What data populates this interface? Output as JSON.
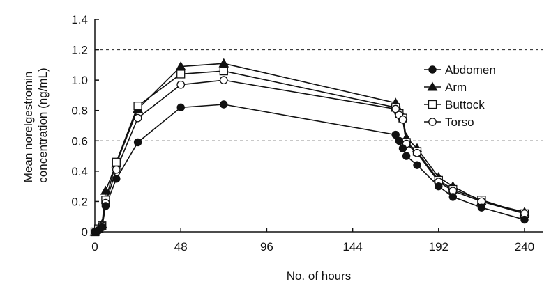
{
  "chart_data": {
    "type": "line",
    "title": "",
    "xlabel": "No. of hours",
    "ylabel_lines": [
      "Mean norelgestromin",
      "concentration (ng/mL)"
    ],
    "xlim": [
      0,
      252
    ],
    "ylim": [
      0,
      1.4
    ],
    "xticks": [
      0,
      48,
      96,
      144,
      192,
      240
    ],
    "yticks": [
      0,
      0.2,
      0.4,
      0.6,
      0.8,
      1.0,
      1.2,
      1.4
    ],
    "ytick_labels": [
      "0",
      "0.2",
      "0.4",
      "0.6",
      "0.8",
      "1.0",
      "1.2",
      "1.4"
    ],
    "reference_lines": [
      0.6,
      1.2
    ],
    "legend_position": "right",
    "series": [
      {
        "name": "Abdomen",
        "marker": "filled-circle",
        "x": [
          0,
          2,
          4,
          6,
          12,
          24,
          48,
          72,
          168,
          170,
          172,
          174,
          180,
          192,
          200,
          216,
          240
        ],
        "y": [
          0,
          0.01,
          0.03,
          0.17,
          0.35,
          0.59,
          0.82,
          0.84,
          0.64,
          0.6,
          0.55,
          0.5,
          0.44,
          0.3,
          0.23,
          0.16,
          0.08
        ]
      },
      {
        "name": "Arm",
        "marker": "filled-triangle",
        "x": [
          0,
          2,
          4,
          6,
          12,
          24,
          48,
          72,
          168,
          170,
          172,
          174,
          180,
          192,
          200,
          216,
          240
        ],
        "y": [
          0,
          0.02,
          0.05,
          0.27,
          0.45,
          0.81,
          1.09,
          1.11,
          0.85,
          0.8,
          0.76,
          0.62,
          0.55,
          0.36,
          0.3,
          0.2,
          0.13
        ]
      },
      {
        "name": "Buttock",
        "marker": "open-square",
        "x": [
          0,
          2,
          4,
          6,
          12,
          24,
          48,
          72,
          168,
          170,
          172,
          174,
          180,
          192,
          200,
          216,
          240
        ],
        "y": [
          0,
          0.02,
          0.04,
          0.21,
          0.46,
          0.83,
          1.04,
          1.06,
          0.82,
          0.78,
          0.75,
          0.59,
          0.53,
          0.34,
          0.28,
          0.21,
          0.12
        ]
      },
      {
        "name": "Torso",
        "marker": "open-circle",
        "x": [
          0,
          2,
          4,
          6,
          12,
          24,
          48,
          72,
          168,
          170,
          172,
          174,
          180,
          192,
          200,
          216,
          240
        ],
        "y": [
          0,
          0.01,
          0.04,
          0.19,
          0.41,
          0.75,
          0.97,
          1.0,
          0.81,
          0.77,
          0.74,
          0.58,
          0.52,
          0.33,
          0.27,
          0.2,
          0.12
        ]
      }
    ]
  }
}
